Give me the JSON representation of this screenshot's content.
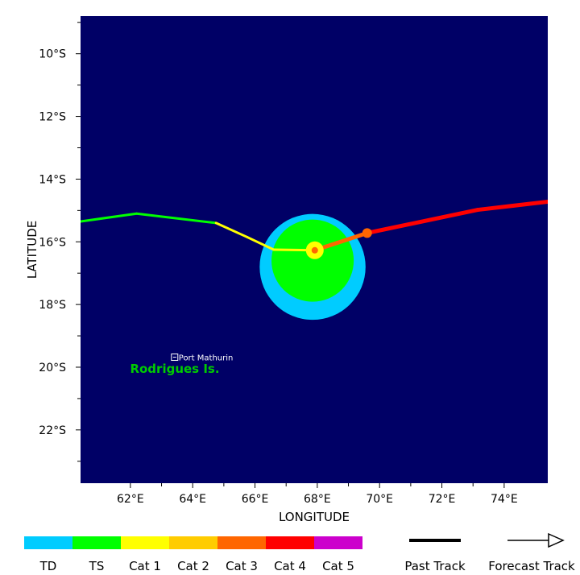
{
  "axes": {
    "xlabel": "LONGITUDE",
    "ylabel": "LATITUDE",
    "x_ticks": [
      {
        "value": 62,
        "label": "62°E"
      },
      {
        "value": 64,
        "label": "64°E"
      },
      {
        "value": 66,
        "label": "66°E"
      },
      {
        "value": 68,
        "label": "68°E"
      },
      {
        "value": 70,
        "label": "70°E"
      },
      {
        "value": 72,
        "label": "72°E"
      },
      {
        "value": 74,
        "label": "74°E"
      }
    ],
    "y_ticks": [
      {
        "value": -10,
        "label": "10°S"
      },
      {
        "value": -12,
        "label": "12°S"
      },
      {
        "value": -14,
        "label": "14°S"
      },
      {
        "value": -16,
        "label": "16°S"
      },
      {
        "value": -18,
        "label": "18°S"
      },
      {
        "value": -20,
        "label": "20°S"
      },
      {
        "value": -22,
        "label": "22°S"
      }
    ],
    "lon_range": [
      60.4,
      75.4
    ],
    "lat_range": [
      -23.7,
      -8.8
    ],
    "background": "#000066"
  },
  "map_labels": {
    "city": {
      "name": "Port Mathurin",
      "lon": 63.42,
      "lat": -19.68
    },
    "island": {
      "name": "Rodrigues Is.",
      "lon": 62.3,
      "lat": -20.05,
      "color": "#00cc00"
    }
  },
  "chart_data": {
    "type": "map-track",
    "storm_center": {
      "lon": 67.92,
      "lat": -16.27
    },
    "wind_fields": [
      {
        "category": "TD",
        "color": "#00ccff",
        "center_lon": 67.85,
        "center_lat": -16.8,
        "radius_deg": 1.7
      },
      {
        "category": "TS",
        "color": "#00ff00",
        "center_lon": 67.85,
        "center_lat": -16.6,
        "radius_deg": 1.32
      }
    ],
    "past_track": [
      {
        "lon": 60.4,
        "lat": -15.35,
        "category": "TS"
      },
      {
        "lon": 62.2,
        "lat": -15.1,
        "category": "TS"
      },
      {
        "lon": 64.75,
        "lat": -15.4,
        "category": "TS"
      },
      {
        "lon": 65.75,
        "lat": -15.85,
        "category": "Cat 1"
      },
      {
        "lon": 66.6,
        "lat": -16.25,
        "category": "Cat 1"
      },
      {
        "lon": 67.92,
        "lat": -16.27,
        "category": "Cat 1"
      }
    ],
    "forecast_track": [
      {
        "lon": 67.92,
        "lat": -16.27,
        "category": "Cat 3"
      },
      {
        "lon": 69.6,
        "lat": -15.72,
        "category": "Cat 3"
      },
      {
        "lon": 73.15,
        "lat": -14.98,
        "category": "Cat 4"
      },
      {
        "lon": 75.4,
        "lat": -14.72,
        "category": "Cat 4"
      }
    ],
    "forecast_points": [
      {
        "lon": 69.6,
        "lat": -15.72,
        "category": "Cat 3"
      }
    ]
  },
  "legend": {
    "categories": [
      {
        "label": "TD",
        "color": "#00ccff"
      },
      {
        "label": "TS",
        "color": "#00ff00"
      },
      {
        "label": "Cat 1",
        "color": "#ffff00"
      },
      {
        "label": "Cat 2",
        "color": "#ffcc00"
      },
      {
        "label": "Cat 3",
        "color": "#ff6600"
      },
      {
        "label": "Cat 4",
        "color": "#ff0000"
      },
      {
        "label": "Cat 5",
        "color": "#cc00cc"
      }
    ],
    "past_track_label": "Past Track",
    "forecast_track_label": "Forecast Track"
  }
}
